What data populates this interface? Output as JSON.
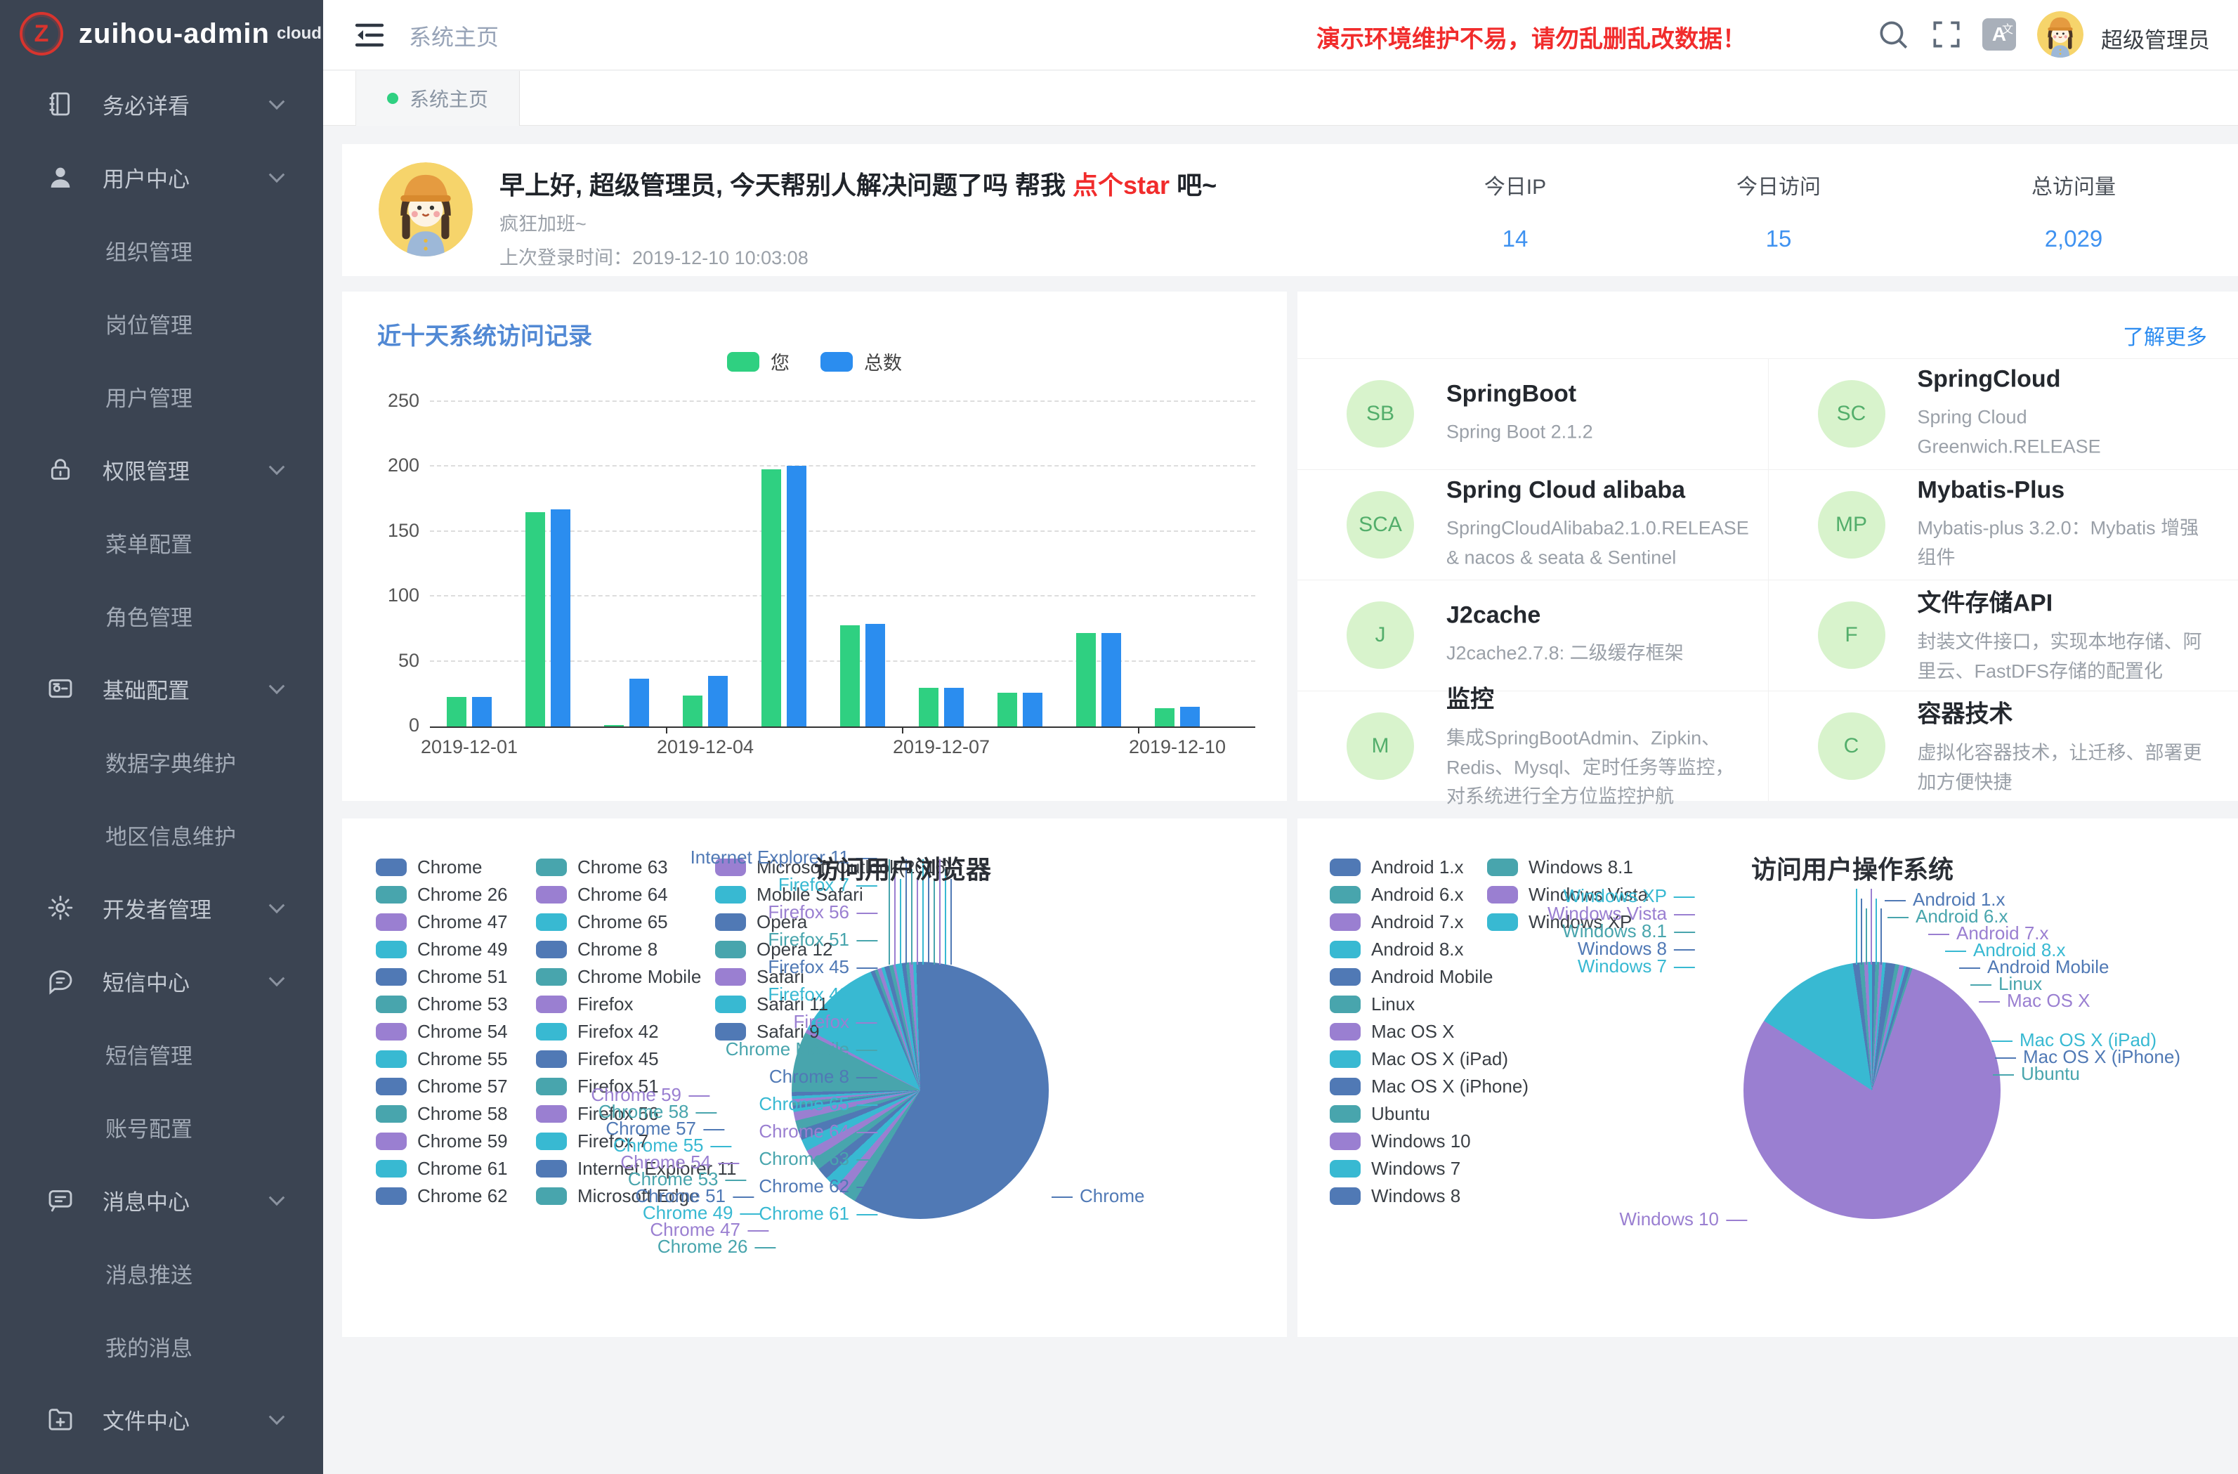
{
  "app": {
    "logo_letter": "Z",
    "title": "zuihou-admin",
    "title_suffix": "cloud"
  },
  "header": {
    "nav_title": "系统主页",
    "warning": "演示环境维护不易，请勿乱删乱改数据！",
    "username": "超级管理员",
    "icons": [
      "search-icon",
      "fullscreen-icon",
      "translate-icon",
      "avatar"
    ]
  },
  "tabbar": {
    "active_tab": "系统主页"
  },
  "sidebar": {
    "items": [
      {
        "label": "务必详看",
        "icon": "notebook-icon",
        "level": 1,
        "chevron": true
      },
      {
        "label": "用户中心",
        "icon": "user-icon",
        "level": 1,
        "chevron": true
      },
      {
        "label": "组织管理",
        "level": 2
      },
      {
        "label": "岗位管理",
        "level": 2
      },
      {
        "label": "用户管理",
        "level": 2
      },
      {
        "label": "权限管理",
        "icon": "lock-icon",
        "level": 1,
        "chevron": true
      },
      {
        "label": "菜单配置",
        "level": 2
      },
      {
        "label": "角色管理",
        "level": 2
      },
      {
        "label": "基础配置",
        "icon": "settings-card-icon",
        "level": 1,
        "chevron": true
      },
      {
        "label": "数据字典维护",
        "level": 2
      },
      {
        "label": "地区信息维护",
        "level": 2
      },
      {
        "label": "开发者管理",
        "icon": "gear-icon",
        "level": 1,
        "chevron": true
      },
      {
        "label": "短信中心",
        "icon": "sms-icon",
        "level": 1,
        "chevron": true
      },
      {
        "label": "短信管理",
        "level": 2
      },
      {
        "label": "账号配置",
        "level": 2
      },
      {
        "label": "消息中心",
        "icon": "message-icon",
        "level": 1,
        "chevron": true
      },
      {
        "label": "消息推送",
        "level": 2
      },
      {
        "label": "我的消息",
        "level": 2
      },
      {
        "label": "文件中心",
        "icon": "folder-plus-icon",
        "level": 1,
        "chevron": true
      }
    ]
  },
  "greeting": {
    "title_prefix": "早上好, 超级管理员, 今天帮别人解决问题了吗 帮我 ",
    "star_link": "点个star",
    "title_suffix": " 吧~",
    "subtitle": "疯狂加班~",
    "last_login_label": "上次登录时间：",
    "last_login_time": "2019-12-10 10:03:08"
  },
  "stats": [
    {
      "label": "今日IP",
      "value": "14"
    },
    {
      "label": "今日访问",
      "value": "15"
    },
    {
      "label": "总访问量",
      "value": "2,029"
    }
  ],
  "tech": {
    "more_link": "了解更多",
    "cards": [
      {
        "abbr": "SB",
        "title": "SpringBoot",
        "desc": "Spring Boot 2.1.2"
      },
      {
        "abbr": "SC",
        "title": "SpringCloud",
        "desc": "Spring Cloud Greenwich.RELEASE"
      },
      {
        "abbr": "SCA",
        "title": "Spring Cloud alibaba",
        "desc": "SpringCloudAlibaba2.1.0.RELEASE & nacos & seata & Sentinel"
      },
      {
        "abbr": "MP",
        "title": "Mybatis-Plus",
        "desc": "Mybatis-plus 3.2.0：Mybatis 增强组件"
      },
      {
        "abbr": "J",
        "title": "J2cache",
        "desc": "J2cache2.7.8: 二级缓存框架"
      },
      {
        "abbr": "F",
        "title": "文件存储API",
        "desc": "封装文件接口，实现本地存储、阿里云、FastDFS存储的配置化"
      },
      {
        "abbr": "M",
        "title": "监控",
        "desc": "集成SpringBootAdmin、Zipkin、Redis、Mysql、定时任务等监控，对系统进行全方位监控护航"
      },
      {
        "abbr": "C",
        "title": "容器技术",
        "desc": "虚拟化容器技术，让迁移、部署更加方便快捷"
      }
    ]
  },
  "colors": {
    "accent_blue": "#2d8cf0",
    "warning_red": "#f12c2c",
    "bar_green": "#2fd081",
    "bar_blue": "#2b8def",
    "pie_palette": [
      "#5079b5",
      "#48a5ad",
      "#9a7fd1",
      "#38b9d2"
    ],
    "avatar_circle_bg": "#d8f3cc",
    "avatar_circle_text": "#53ae6b"
  },
  "chart_data": [
    {
      "type": "bar",
      "title": "近十天系统访问记录",
      "categories": [
        "2019-12-01",
        "2019-12-02",
        "2019-12-03",
        "2019-12-04",
        "2019-12-05",
        "2019-12-06",
        "2019-12-07",
        "2019-12-08",
        "2019-12-09",
        "2019-12-10"
      ],
      "series": [
        {
          "name": "您",
          "color": "#2fd081",
          "values": [
            23,
            165,
            1,
            24,
            198,
            78,
            30,
            26,
            72,
            14
          ]
        },
        {
          "name": "总数",
          "color": "#2b8def",
          "values": [
            23,
            167,
            37,
            39,
            201,
            79,
            30,
            26,
            72,
            15
          ]
        }
      ],
      "xlabel": "",
      "ylabel": "",
      "ylim": [
        0,
        250
      ],
      "yticks": [
        0,
        50,
        100,
        150,
        200,
        250
      ],
      "x_tick_labels_shown": [
        "2019-12-01",
        "2019-12-04",
        "2019-12-07",
        "2019-12-10"
      ],
      "grid": "dashed-horizontal",
      "legend_position": "top-center"
    },
    {
      "type": "pie",
      "title": "访问用户浏览器",
      "legend_position": "left, 3 columns of 13/13/7",
      "slices": [
        {
          "label": "Chrome",
          "pct": 58.5
        },
        {
          "label": "Chrome 26",
          "pct": 1.6
        },
        {
          "label": "Chrome 47",
          "pct": 1.3
        },
        {
          "label": "Chrome 49",
          "pct": 1.6
        },
        {
          "label": "Chrome 51",
          "pct": 1.5
        },
        {
          "label": "Chrome 53",
          "pct": 1.4
        },
        {
          "label": "Chrome 54",
          "pct": 1.3
        },
        {
          "label": "Chrome 55",
          "pct": 1.5
        },
        {
          "label": "Chrome 57",
          "pct": 1.3
        },
        {
          "label": "Chrome 58",
          "pct": 1.2
        },
        {
          "label": "Chrome 59",
          "pct": 1.1
        },
        {
          "label": "Chrome 61",
          "pct": 0.4
        },
        {
          "label": "Chrome 62",
          "pct": 0.4
        },
        {
          "label": "Chrome 63",
          "pct": 0.4
        },
        {
          "label": "Chrome 64",
          "pct": 0.4
        },
        {
          "label": "Chrome 65",
          "pct": 0.4
        },
        {
          "label": "Chrome 8",
          "pct": 0.5
        },
        {
          "label": "Chrome Mobile",
          "pct": 7.6
        },
        {
          "label": "Firefox",
          "pct": 0.5
        },
        {
          "label": "Firefox 42",
          "pct": 10.8
        },
        {
          "label": "Firefox 45",
          "pct": 0.5
        },
        {
          "label": "Firefox 51",
          "pct": 0.4
        },
        {
          "label": "Firefox 56",
          "pct": 0.5
        },
        {
          "label": "Firefox 7",
          "pct": 0.4
        },
        {
          "label": "Internet Explorer 11",
          "pct": 0.6
        },
        {
          "label": "Microsoft Edge",
          "pct": 0.5
        },
        {
          "label": "Microsoft Outlook(2016)",
          "pct": 0.3
        },
        {
          "label": "Mobile Safari",
          "pct": 0.8
        },
        {
          "label": "Opera",
          "pct": 0.5
        },
        {
          "label": "Opera 12",
          "pct": 0.4
        },
        {
          "label": "Safari",
          "pct": 0.5
        },
        {
          "label": "Safari 11",
          "pct": 0.4
        },
        {
          "label": "Safari 9",
          "pct": 0.5
        }
      ]
    },
    {
      "type": "pie",
      "title": "访问用户操作系统",
      "legend_position": "left, 2 columns of 13/3",
      "slices": [
        {
          "label": "Android 1.x",
          "pct": 0.4
        },
        {
          "label": "Android 6.x",
          "pct": 0.5
        },
        {
          "label": "Android 7.x",
          "pct": 0.4
        },
        {
          "label": "Android 8.x",
          "pct": 0.4
        },
        {
          "label": "Android Mobile",
          "pct": 1.2
        },
        {
          "label": "Linux",
          "pct": 0.5
        },
        {
          "label": "Mac OS X",
          "pct": 0.6
        },
        {
          "label": "Mac OS X (iPad)",
          "pct": 0.3
        },
        {
          "label": "Mac OS X (iPhone)",
          "pct": 0.5
        },
        {
          "label": "Ubuntu",
          "pct": 0.3
        },
        {
          "label": "Windows 10",
          "pct": 79.0
        },
        {
          "label": "Windows 7",
          "pct": 13.5
        },
        {
          "label": "Windows 8",
          "pct": 0.8
        },
        {
          "label": "Windows 8.1",
          "pct": 0.6
        },
        {
          "label": "Windows Vista",
          "pct": 0.5
        },
        {
          "label": "Windows XP",
          "pct": 0.5
        }
      ]
    }
  ]
}
